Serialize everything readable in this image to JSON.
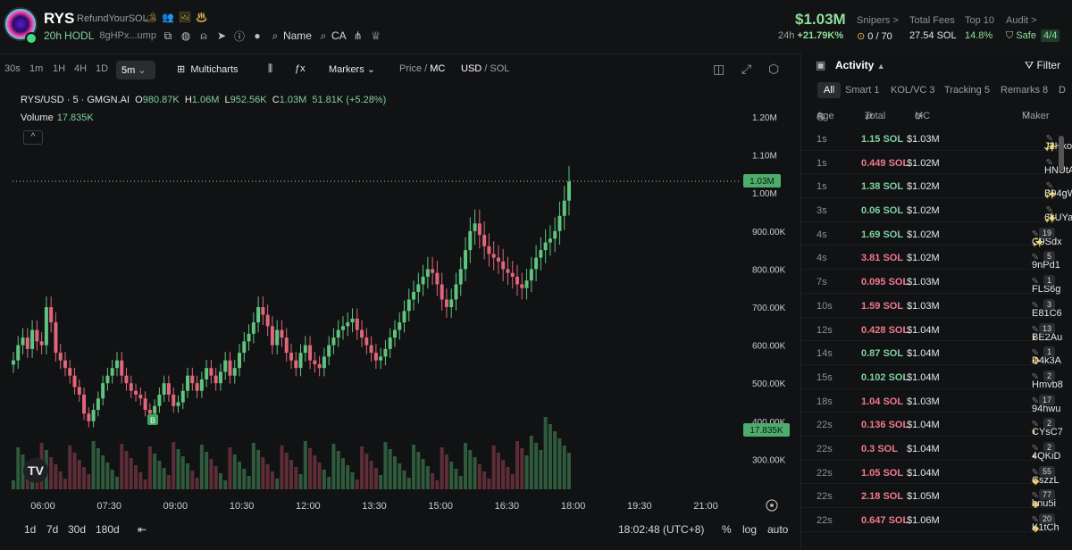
{
  "token": {
    "symbol": "RYS",
    "full_name": "RefundYourSOL",
    "badges": "🏕 👥 🖼 ♨",
    "holding_time": "20h",
    "holding_label": "HODL",
    "address_short": "8gHPx...ump",
    "name_label": "Name",
    "ca_label": "CA"
  },
  "market": {
    "price": "$1.03M",
    "change_period": "24h",
    "change_value": "+21.79K%",
    "snipers_label": "Snipers >",
    "snipers_value": "0 / 70",
    "fees_label": "Total Fees",
    "fees_value": "27.54 SOL",
    "top10_label": "Top 10",
    "top10_value": "14.8%",
    "audit_label": "Audit >",
    "audit_value": "Safe",
    "audit_score": "4/4"
  },
  "toolbar": {
    "intervals": [
      "30s",
      "1m",
      "1H",
      "4H",
      "1D"
    ],
    "selected_interval": "5m",
    "multicharts": "Multicharts",
    "markers": "Markers",
    "price_label": "Price",
    "mc_label": "MC",
    "usd_label": "USD",
    "sol_label": "SOL"
  },
  "legend": {
    "pair": "RYS/USD · 5 · GMGN.AI",
    "o_label": "O",
    "o": "980.87K",
    "h_label": "H",
    "h": "1.06M",
    "l_label": "L",
    "l": "952.56K",
    "c_label": "C",
    "c": "1.03M",
    "change": "51.81K (+5.28%)",
    "volume_label": "Volume",
    "volume_value": "17.835K"
  },
  "chart_data": {
    "type": "candlestick",
    "yaxis_ticks": [
      "1.20M",
      "1.10M",
      "1.00M",
      "900.00K",
      "800.00K",
      "700.00K",
      "600.00K",
      "500.00K",
      "400.00K",
      "300.00K"
    ],
    "xaxis_ticks": [
      "06:00",
      "07:30",
      "09:00",
      "10:30",
      "12:00",
      "13:30",
      "15:00",
      "16:30",
      "18:00",
      "19:30",
      "21:00"
    ],
    "last_price_label": "1.03M",
    "last_volume_label": "17.835K",
    "ylim": [
      200000,
      1250000
    ],
    "colors": {
      "up": "#5fc47e",
      "down": "#e0667a"
    }
  },
  "bottom": {
    "ranges": [
      "1d",
      "7d",
      "30d",
      "180d"
    ],
    "time": "18:02:48 (UTC+8)",
    "pct": "%",
    "log": "log",
    "auto": "auto"
  },
  "activity": {
    "title": "Activity",
    "filter": "Filter",
    "tabs": [
      "All",
      "Smart 1",
      "KOL/VC 3",
      "Tracking 5",
      "Remarks 8",
      "D"
    ],
    "headers": {
      "age": "Age",
      "total": "Total",
      "mc": "MC",
      "maker": "Maker"
    },
    "rows": [
      {
        "age": "1s",
        "total": "1.15 SOL",
        "mc": "$1.03M",
        "maker": "J2Hko",
        "side": "buy",
        "icon": "✨",
        "count": ""
      },
      {
        "age": "1s",
        "total": "0.449 SOL",
        "mc": "$1.02M",
        "maker": "HNUtA",
        "side": "sell",
        "icon": "",
        "count": ""
      },
      {
        "age": "1s",
        "total": "1.38 SOL",
        "mc": "$1.02M",
        "maker": "B94gW",
        "side": "buy",
        "icon": "✨",
        "count": ""
      },
      {
        "age": "3s",
        "total": "0.06 SOL",
        "mc": "$1.02M",
        "maker": "6kUYa",
        "side": "buy",
        "icon": "✨",
        "count": ""
      },
      {
        "age": "4s",
        "total": "1.69 SOL",
        "mc": "$1.02M",
        "maker": "G9Sdx",
        "side": "buy",
        "icon": "✨",
        "count": "19"
      },
      {
        "age": "4s",
        "total": "3.81 SOL",
        "mc": "$1.02M",
        "maker": "9nPd1",
        "side": "sell",
        "icon": "",
        "count": "5"
      },
      {
        "age": "7s",
        "total": "0.095 SOL",
        "mc": "$1.03M",
        "maker": "FLS6g",
        "side": "sell",
        "icon": "",
        "count": "1"
      },
      {
        "age": "10s",
        "total": "1.59 SOL",
        "mc": "$1.03M",
        "maker": "E81C6",
        "side": "sell",
        "icon": "",
        "count": "3"
      },
      {
        "age": "12s",
        "total": "0.428 SOL",
        "mc": "$1.04M",
        "maker": "BE2Au",
        "side": "sell",
        "icon": "◐",
        "count": "13"
      },
      {
        "age": "14s",
        "total": "0.87 SOL",
        "mc": "$1.04M",
        "maker": "D4k3A",
        "side": "buy",
        "icon": "✤",
        "count": "1"
      },
      {
        "age": "15s",
        "total": "0.102 SOL",
        "mc": "$1.04M",
        "maker": "Hmvb8",
        "side": "buy",
        "icon": "",
        "count": "2"
      },
      {
        "age": "18s",
        "total": "1.04 SOL",
        "mc": "$1.03M",
        "maker": "94hwu",
        "side": "sell",
        "icon": "",
        "count": "17"
      },
      {
        "age": "22s",
        "total": "0.136 SOL",
        "mc": "$1.04M",
        "maker": "CYsC7",
        "side": "sell",
        "icon": "◐",
        "count": "2"
      },
      {
        "age": "22s",
        "total": "0.3 SOL",
        "mc": "$1.04M",
        "maker": "4QKiD",
        "side": "sell",
        "icon": "◐",
        "count": "2"
      },
      {
        "age": "22s",
        "total": "1.05 SOL",
        "mc": "$1.04M",
        "maker": "CszzL",
        "side": "sell",
        "icon": "◆",
        "count": "55"
      },
      {
        "age": "22s",
        "total": "2.18 SOL",
        "mc": "$1.05M",
        "maker": "hnu5i",
        "side": "sell",
        "icon": "◆",
        "count": "77"
      },
      {
        "age": "22s",
        "total": "0.647 SOL",
        "mc": "$1.06M",
        "maker": "K1tCh",
        "side": "sell",
        "icon": "◆",
        "count": "20"
      }
    ]
  }
}
